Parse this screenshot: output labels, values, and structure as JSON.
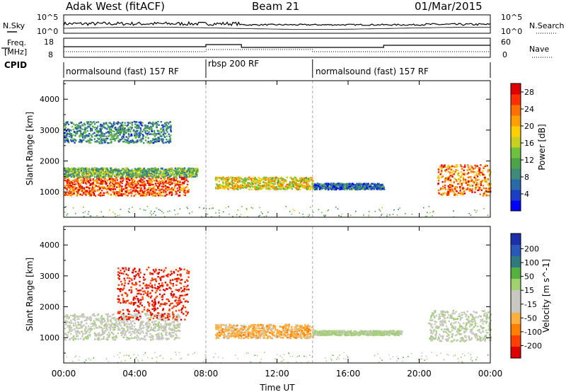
{
  "header": {
    "station": "Adak West (fitACF)",
    "beam": "Beam 21",
    "date": "01/Mar/2015"
  },
  "panels": {
    "nsky_label": "N.Sky",
    "nsearch_label": "N.Search",
    "freq_label_line1": "Freq.",
    "freq_label_line2": "[MHz]",
    "nave_label": "Nave",
    "cpid_label": "CPID",
    "nsky_ticks": [
      "10^5",
      "10^0"
    ],
    "nsearch_ticks": [
      "10^5",
      "10^0"
    ],
    "freq_ticks": [
      "18",
      "8"
    ],
    "nave_ticks": [
      "60",
      "0"
    ],
    "cpid_segments": [
      {
        "label": "normalsound (fast) 157 RF",
        "start": 0,
        "end": 8
      },
      {
        "label": "rbsp 200 RF",
        "start": 8,
        "end": 14
      },
      {
        "label": "normalsound (fast) 157 RF",
        "start": 14,
        "end": 24
      }
    ]
  },
  "xaxis": {
    "title": "Time UT",
    "ticks": [
      "00:00",
      "04:00",
      "08:00",
      "12:00",
      "16:00",
      "20:00",
      "00:00"
    ]
  },
  "yaxis": {
    "title": "Slant Range [km]",
    "ticks": [
      "1000",
      "2000",
      "3000",
      "4000"
    ]
  },
  "power_colorbar": {
    "title": "Power [dB]",
    "labels": [
      "28",
      "24",
      "20",
      "16",
      "12",
      "8",
      "4"
    ],
    "colors": [
      "#0000ff",
      "#1a3fc4",
      "#2a6aa8",
      "#3f8a78",
      "#4ca34a",
      "#70c040",
      "#c8d020",
      "#ffd000",
      "#ffa000",
      "#ff7000",
      "#ff3000",
      "#e00000"
    ]
  },
  "velocity_colorbar": {
    "title": "Velocity [m s^-1]",
    "labels": [
      "200",
      "100",
      "50",
      "15",
      "-15",
      "-50",
      "-100",
      "-200"
    ],
    "colors": [
      "#1c2fa8",
      "#2a58b8",
      "#2f7a80",
      "#55b040",
      "#a0d070",
      "#c8c8c0",
      "#c8c8c0",
      "#ffb040",
      "#ff8000",
      "#ff4000",
      "#e00000"
    ]
  },
  "chart_data": {
    "type": "heatmap",
    "title": "Adak West (fitACF)  Beam 21  01/Mar/2015",
    "xlabel": "Time UT",
    "ylabel": "Slant Range [km]",
    "xlim": [
      0,
      24
    ],
    "ylim": [
      180,
      4600
    ],
    "cpid_boundaries_hours": [
      8,
      14
    ],
    "power_scatter_regions": [
      {
        "t_start": 0,
        "t_end": 7,
        "range": [
          900,
          1500
        ],
        "power_db": 26
      },
      {
        "t_start": 0,
        "t_end": 7.5,
        "range": [
          1500,
          1800
        ],
        "power_db": 12
      },
      {
        "t_start": 0,
        "t_end": 6,
        "range": [
          2600,
          3300
        ],
        "power_db": 8
      },
      {
        "t_start": 8.5,
        "t_end": 14,
        "range": [
          1100,
          1500
        ],
        "power_db": 18
      },
      {
        "t_start": 14,
        "t_end": 18,
        "range": [
          1100,
          1300
        ],
        "power_db": 6
      },
      {
        "t_start": 21,
        "t_end": 24,
        "range": [
          900,
          1900
        ],
        "power_db": 24
      }
    ],
    "velocity_scatter_regions": [
      {
        "t_start": 0,
        "t_end": 6.5,
        "range": [
          950,
          1800
        ],
        "velocity_ms": 0
      },
      {
        "t_start": 3,
        "t_end": 7,
        "range": [
          1600,
          3300
        ],
        "velocity_ms": -180
      },
      {
        "t_start": 8.5,
        "t_end": 14,
        "range": [
          1000,
          1450
        ],
        "velocity_ms": -80
      },
      {
        "t_start": 14,
        "t_end": 19,
        "range": [
          1100,
          1250
        ],
        "velocity_ms": 30
      },
      {
        "t_start": 20.5,
        "t_end": 24,
        "range": [
          900,
          1900
        ],
        "velocity_ms": 10
      }
    ]
  }
}
